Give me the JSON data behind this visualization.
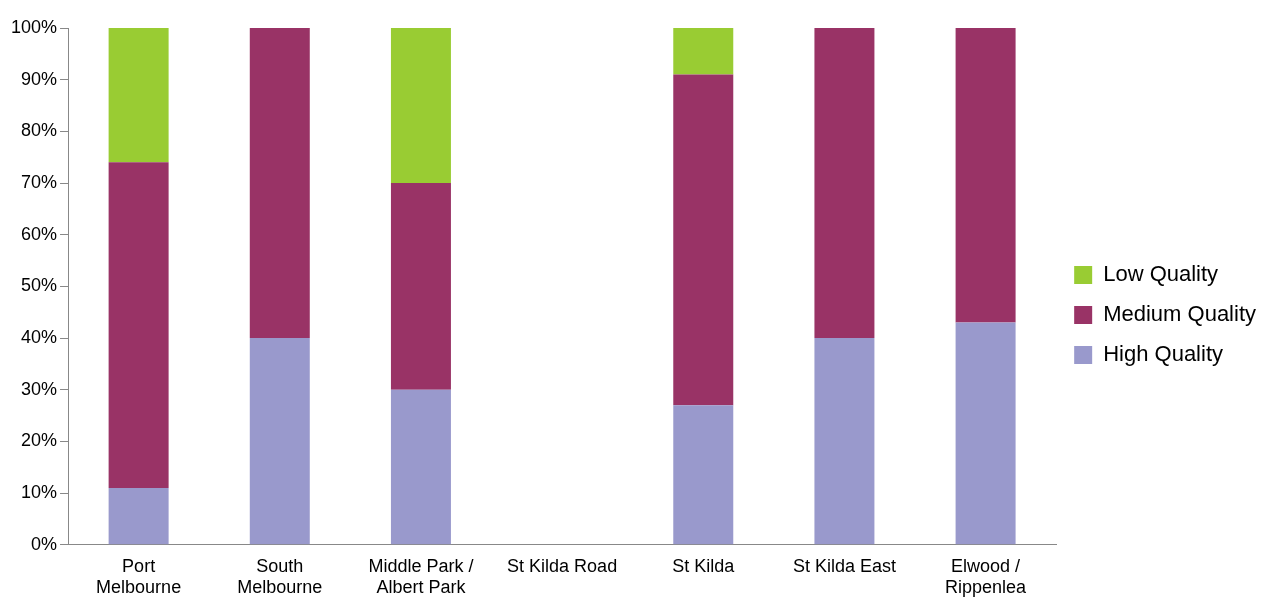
{
  "chart_data": {
    "type": "bar",
    "stacked": true,
    "categories": [
      "Port Melbourne",
      "South Melbourne",
      "Middle Park / Albert Park",
      "St Kilda Road",
      "St Kilda",
      "St Kilda East",
      "Elwood / Rippenlea"
    ],
    "series": [
      {
        "name": "High Quality",
        "color": "#9999cc",
        "values": [
          11,
          40,
          30,
          0,
          27,
          40,
          43
        ]
      },
      {
        "name": "Medium Quality",
        "color": "#993366",
        "values": [
          63,
          60,
          40,
          0,
          64,
          60,
          57
        ]
      },
      {
        "name": "Low Quality",
        "color": "#99cc33",
        "values": [
          26,
          0,
          30,
          0,
          9,
          0,
          0
        ]
      }
    ],
    "ylim": [
      0,
      100
    ],
    "yticks": [
      {
        "value": 0,
        "label": "0%"
      },
      {
        "value": 10,
        "label": "10%"
      },
      {
        "value": 20,
        "label": "20%"
      },
      {
        "value": 30,
        "label": "30%"
      },
      {
        "value": 40,
        "label": "40%"
      },
      {
        "value": 50,
        "label": "50%"
      },
      {
        "value": 60,
        "label": "60%"
      },
      {
        "value": 70,
        "label": "70%"
      },
      {
        "value": 80,
        "label": "80%"
      },
      {
        "value": 90,
        "label": "90%"
      },
      {
        "value": 100,
        "label": "100%"
      }
    ],
    "grid": false,
    "legend": "right"
  }
}
